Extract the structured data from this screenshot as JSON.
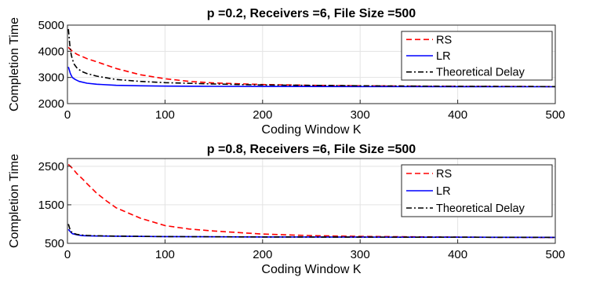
{
  "chart_data": [
    {
      "type": "line",
      "title": "p =0.2, Receivers =6, File Size =500",
      "xlabel": "Coding Window K",
      "ylabel": "Completion Time",
      "xlim": [
        0,
        500
      ],
      "ylim": [
        2000,
        5000
      ],
      "xticks": [
        "0",
        "100",
        "200",
        "300",
        "400",
        "500"
      ],
      "yticks": [
        "2000",
        "3000",
        "4000",
        "5000"
      ],
      "grid": true,
      "legend_position": "top-right",
      "series": [
        {
          "name": "RS",
          "color": "#ff0000",
          "dash": "dashed",
          "x": [
            1,
            5,
            10,
            20,
            30,
            50,
            75,
            100,
            125,
            150,
            200,
            250,
            300,
            400,
            500
          ],
          "y": [
            4150,
            4000,
            3880,
            3720,
            3600,
            3340,
            3100,
            2950,
            2850,
            2790,
            2730,
            2700,
            2680,
            2660,
            2650
          ]
        },
        {
          "name": "LR",
          "color": "#0000ff",
          "dash": "solid",
          "x": [
            1,
            3,
            5,
            8,
            12,
            20,
            30,
            50,
            75,
            100,
            150,
            200,
            300,
            400,
            500
          ],
          "y": [
            3400,
            3150,
            3000,
            2920,
            2850,
            2780,
            2740,
            2700,
            2680,
            2670,
            2660,
            2655,
            2650,
            2648,
            2645
          ]
        },
        {
          "name": "Theoretical Delay",
          "color": "#000000",
          "dash": "dashdot",
          "x": [
            1,
            2,
            3,
            4,
            5,
            7,
            10,
            15,
            20,
            30,
            50,
            75,
            100,
            150,
            200,
            300,
            400,
            500
          ],
          "y": [
            4850,
            4400,
            4050,
            3850,
            3700,
            3500,
            3350,
            3220,
            3150,
            3050,
            2920,
            2850,
            2800,
            2750,
            2710,
            2680,
            2660,
            2650
          ]
        }
      ]
    },
    {
      "type": "line",
      "title": "p =0.8, Receivers =6, File Size =500",
      "xlabel": "Coding Window K",
      "ylabel": "Completion Time",
      "xlim": [
        0,
        500
      ],
      "ylim": [
        500,
        2700
      ],
      "xticks": [
        "0",
        "100",
        "200",
        "300",
        "400",
        "500"
      ],
      "yticks": [
        "500",
        "1500",
        "2500"
      ],
      "grid": true,
      "legend_position": "top-right",
      "series": [
        {
          "name": "RS",
          "color": "#ff0000",
          "dash": "dashed",
          "x": [
            1,
            5,
            10,
            15,
            20,
            30,
            40,
            50,
            75,
            100,
            125,
            150,
            200,
            250,
            300,
            400,
            500
          ],
          "y": [
            2550,
            2450,
            2300,
            2180,
            2050,
            1800,
            1600,
            1420,
            1150,
            960,
            870,
            820,
            740,
            700,
            680,
            660,
            650
          ]
        },
        {
          "name": "LR",
          "color": "#0000ff",
          "dash": "solid",
          "x": [
            1,
            3,
            5,
            10,
            15,
            20,
            30,
            50,
            100,
            200,
            300,
            400,
            500
          ],
          "y": [
            860,
            800,
            750,
            720,
            700,
            695,
            690,
            685,
            675,
            665,
            660,
            658,
            655
          ]
        },
        {
          "name": "Theoretical Delay",
          "color": "#000000",
          "dash": "dashdot",
          "x": [
            1,
            3,
            5,
            10,
            15,
            20,
            30,
            50,
            100,
            200,
            300,
            400,
            500
          ],
          "y": [
            1000,
            830,
            770,
            730,
            715,
            705,
            695,
            688,
            675,
            665,
            660,
            658,
            655
          ]
        }
      ]
    }
  ]
}
